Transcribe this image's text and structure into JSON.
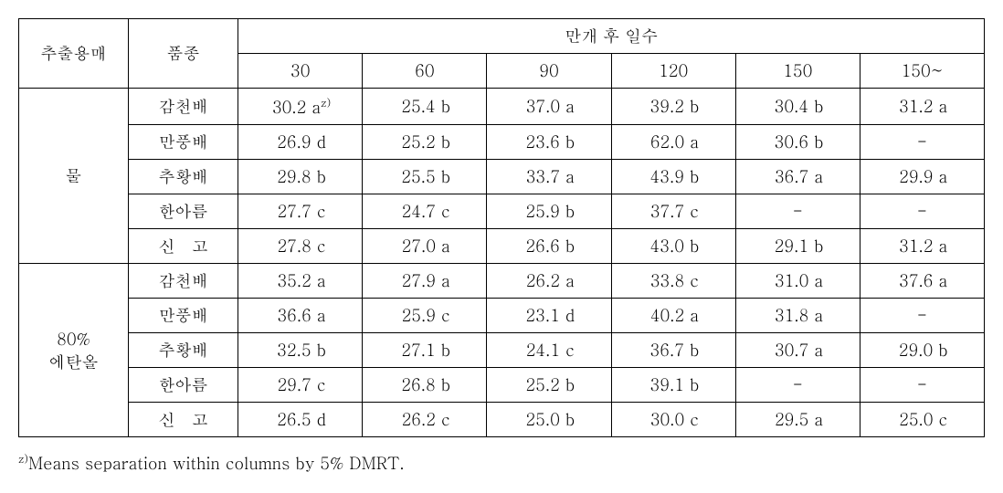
{
  "headers": {
    "solvent": "추출용매",
    "variety": "품종",
    "days_group": "만개 후 일수",
    "days": [
      "30",
      "60",
      "90",
      "120",
      "150",
      "150~"
    ]
  },
  "solvents": [
    {
      "label": "물",
      "rows": 5
    },
    {
      "label_line1": "80%",
      "label_line2": "에탄올",
      "rows": 5
    }
  ],
  "rows": [
    {
      "variety": "감천배",
      "cells": [
        [
          "30.2",
          "a",
          "z)"
        ],
        [
          "25.4",
          "b"
        ],
        [
          "37.0",
          "a"
        ],
        [
          "39.2",
          "b"
        ],
        [
          "30.4",
          "b"
        ],
        [
          "31.2",
          "a"
        ]
      ]
    },
    {
      "variety": "만풍배",
      "cells": [
        [
          "26.9",
          "d"
        ],
        [
          "25.2",
          "b"
        ],
        [
          "23.6",
          "b"
        ],
        [
          "62.0",
          "a"
        ],
        [
          "30.6",
          "b"
        ],
        [
          "-",
          ""
        ]
      ]
    },
    {
      "variety": "추황배",
      "cells": [
        [
          "29.8",
          "b"
        ],
        [
          "25.5",
          "b"
        ],
        [
          "33.7",
          "a"
        ],
        [
          "43.9",
          "b"
        ],
        [
          "36.7",
          "a"
        ],
        [
          "29.9",
          "a"
        ]
      ]
    },
    {
      "variety": "한아름",
      "cells": [
        [
          "27.7",
          "c"
        ],
        [
          "24.7",
          "c"
        ],
        [
          "25.9",
          "b"
        ],
        [
          "37.7",
          "c"
        ],
        [
          "-",
          ""
        ],
        [
          "-",
          ""
        ]
      ]
    },
    {
      "variety": "신 고",
      "cells": [
        [
          "27.8",
          "c"
        ],
        [
          "27.0",
          "a"
        ],
        [
          "26.6",
          "b"
        ],
        [
          "43.0",
          "b"
        ],
        [
          "29.1",
          "b"
        ],
        [
          "31.2",
          "a"
        ]
      ]
    },
    {
      "variety": "감천배",
      "cells": [
        [
          "35.2",
          "a"
        ],
        [
          "27.9",
          "a"
        ],
        [
          "26.2",
          "a"
        ],
        [
          "33.8",
          "c"
        ],
        [
          "31.0",
          "a"
        ],
        [
          "37.6",
          "a"
        ]
      ]
    },
    {
      "variety": "만풍배",
      "cells": [
        [
          "36.6",
          "a"
        ],
        [
          "25.9",
          "c"
        ],
        [
          "23.1",
          "d"
        ],
        [
          "40.2",
          "a"
        ],
        [
          "31.8",
          "a"
        ],
        [
          "-",
          ""
        ]
      ]
    },
    {
      "variety": "추황배",
      "cells": [
        [
          "32.5",
          "b"
        ],
        [
          "27.1",
          "b"
        ],
        [
          "24.1",
          "c"
        ],
        [
          "36.7",
          "b"
        ],
        [
          "30.7",
          "a"
        ],
        [
          "29.0",
          "b"
        ]
      ]
    },
    {
      "variety": "한아름",
      "cells": [
        [
          "29.7",
          "c"
        ],
        [
          "26.8",
          "b"
        ],
        [
          "25.2",
          "b"
        ],
        [
          "39.1",
          "b"
        ],
        [
          "-",
          ""
        ],
        [
          "-",
          ""
        ]
      ]
    },
    {
      "variety": "신 고",
      "cells": [
        [
          "26.5",
          "d"
        ],
        [
          "26.2",
          "c"
        ],
        [
          "25.0",
          "b"
        ],
        [
          "30.0",
          "c"
        ],
        [
          "29.5",
          "a"
        ],
        [
          "25.0",
          "c"
        ]
      ]
    }
  ],
  "footnote_prefix": "z)",
  "footnote_text": "Means separation within columns by 5% DMRT."
}
